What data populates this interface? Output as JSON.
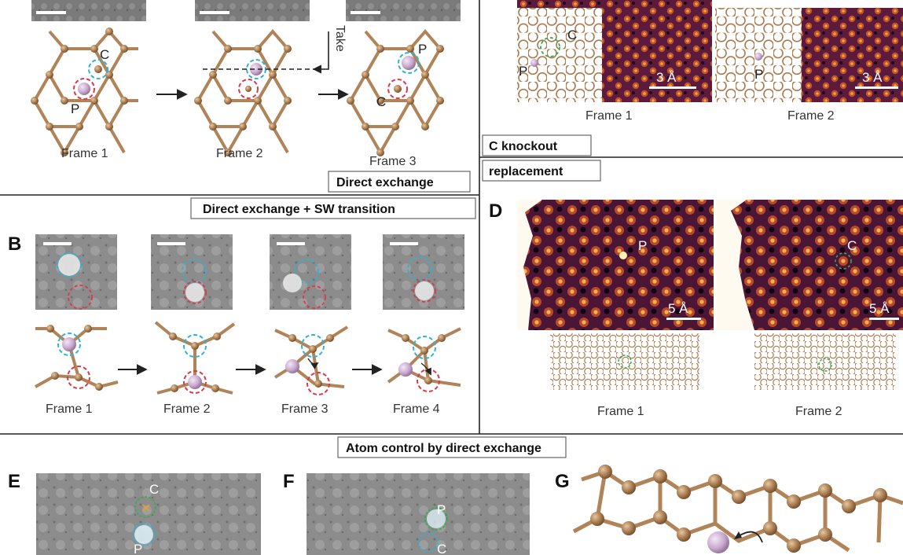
{
  "colors": {
    "carbon": "#a87a4d",
    "carbon_bond": "#b08458",
    "phosphorus": "#c9a9cf",
    "ring_cyan": "#2db3d6",
    "ring_red": "#d83a4a",
    "ring_green": "#2fae4f",
    "divider": "#222222",
    "box_border": "#666666"
  },
  "top_left": {
    "frames": [
      "Frame 1",
      "Frame 2",
      "Frame 3"
    ],
    "take_label": "Take",
    "atom_P": "P",
    "atom_C": "C",
    "box": "Direct exchange"
  },
  "top_right": {
    "frames": [
      "Frame 1",
      "Frame 2"
    ],
    "atom_P": "P",
    "atom_C": "C",
    "scale": "3 Å",
    "box1": "C knockout",
    "box2": "replacement"
  },
  "panel_B": {
    "letter": "B",
    "box": "Direct exchange + SW transition",
    "frames": [
      "Frame 1",
      "Frame 2",
      "Frame 3",
      "Frame 4"
    ]
  },
  "panel_D": {
    "letter": "D",
    "frames": [
      "Frame 1",
      "Frame 2"
    ],
    "atom_P": "P",
    "atom_C": "C",
    "scale": "5 Å"
  },
  "bottom": {
    "box": "Atom control by direct exchange",
    "E": {
      "letter": "E",
      "atom_C": "C",
      "atom_P": "P"
    },
    "F": {
      "letter": "F",
      "atom_P": "P",
      "atom_C": "C"
    },
    "G": {
      "letter": "G"
    }
  }
}
